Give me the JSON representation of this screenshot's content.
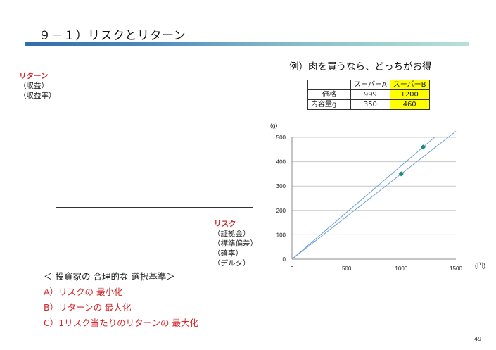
{
  "slide": {
    "title": "９－１）リスクとリターン",
    "page_number": "49"
  },
  "left_axis": {
    "y_label": "リターン",
    "y_sub1": "（収益）",
    "y_sub2": "（収益率）",
    "x_label": "リスク",
    "x_sub1": "（証拠金）",
    "x_sub2": "（標準偏差）",
    "x_sub3": "（確率）",
    "x_sub4": "（デルタ）"
  },
  "criteria": {
    "heading": "＜ 投資家の 合理的な 選択基準＞",
    "items": [
      "A）リスクの 最小化",
      "B）リターンの 最大化",
      "C）1リスク当たりのリターンの 最大化"
    ]
  },
  "example": {
    "title": "例）肉を買うなら、どっちがお得",
    "table": {
      "headers": [
        "",
        "スーパーA",
        "スーパーB"
      ],
      "rows": [
        {
          "label": "価格",
          "a": "999",
          "b": "1200"
        },
        {
          "label": "内容量g",
          "a": "350",
          "b": "460"
        }
      ]
    }
  },
  "colors": {
    "accent_red": "#d6262a",
    "highlight": "#ffff00",
    "point_color": "#1a8c73",
    "line_color": "#6f9fd8"
  },
  "chart_data": {
    "type": "scatter",
    "y_unit_label": "(g)",
    "x_unit_label": "(円)",
    "xlim": [
      0,
      1500
    ],
    "ylim": [
      0,
      500
    ],
    "x_ticks": [
      0,
      500,
      1000,
      1500
    ],
    "y_ticks": [
      0,
      100,
      200,
      300,
      400,
      500
    ],
    "grid": "horizontal",
    "points": [
      {
        "x": 999,
        "y": 350
      },
      {
        "x": 1200,
        "y": 460
      }
    ],
    "lines": [
      {
        "x": [
          0,
          1500
        ],
        "y": [
          0,
          525
        ]
      },
      {
        "x": [
          0,
          1304
        ],
        "y": [
          0,
          500
        ]
      }
    ]
  }
}
